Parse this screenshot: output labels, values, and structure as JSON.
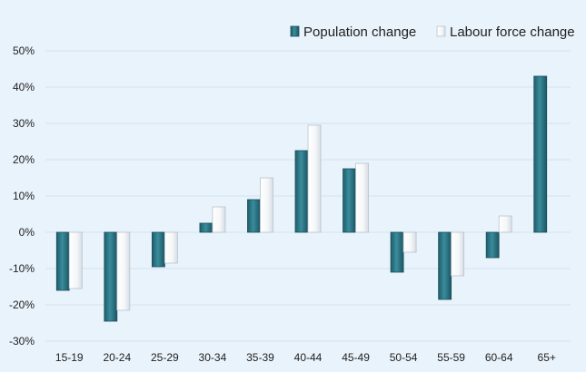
{
  "chart_data": {
    "type": "bar",
    "title": "",
    "xlabel": "",
    "ylabel": "",
    "categories": [
      "15-19",
      "20-24",
      "25-29",
      "30-34",
      "35-39",
      "40-44",
      "45-49",
      "50-54",
      "55-59",
      "60-64",
      "65+"
    ],
    "series": [
      {
        "name": "Population change",
        "color": "#2e7a8a",
        "values": [
          -16,
          -24.5,
          -9.5,
          2.5,
          9,
          22.5,
          17.5,
          -11,
          -18.5,
          -7,
          43
        ]
      },
      {
        "name": "Labour force change",
        "color": "#ffffff",
        "values": [
          -15.5,
          -21.5,
          -8.5,
          7,
          15,
          29.5,
          19,
          -5.5,
          -12,
          4.5,
          null
        ]
      }
    ],
    "ylim": [
      -30,
      50
    ],
    "yticks": [
      "-30%",
      "-20%",
      "-10%",
      "0%",
      "10%",
      "20%",
      "30%",
      "40%",
      "50%"
    ],
    "grid": true,
    "legend_position": "top-right"
  }
}
